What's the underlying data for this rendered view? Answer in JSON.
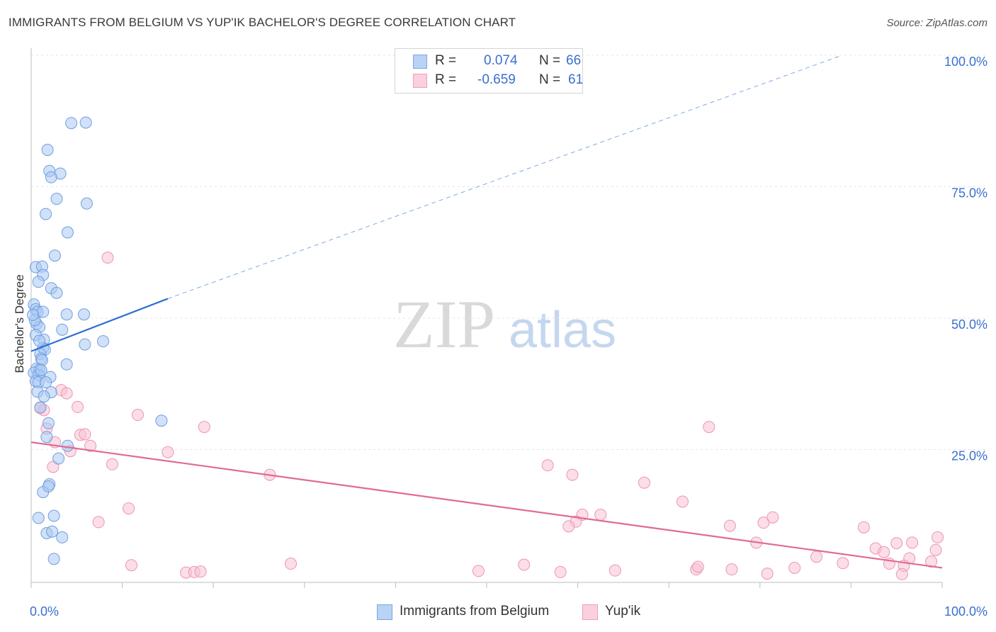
{
  "header": {
    "title": "IMMIGRANTS FROM BELGIUM VS YUP'IK BACHELOR'S DEGREE CORRELATION CHART",
    "source": "Source: ZipAtlas.com"
  },
  "watermark": {
    "zip": "ZIP",
    "atlas": "atlas"
  },
  "legend": {
    "rows": [
      {
        "r_label": "R =",
        "r_value": "0.074",
        "n_label": "N =",
        "n_value": "66"
      },
      {
        "r_label": "R =",
        "r_value": "-0.659",
        "n_label": "N =",
        "n_value": "61"
      }
    ]
  },
  "bottom_legend": {
    "series_a": "Immigrants from Belgium",
    "series_b": "Yup'ik"
  },
  "chart_data": {
    "type": "scatter",
    "title": "IMMIGRANTS FROM BELGIUM VS YUP'IK BACHELOR'S DEGREE CORRELATION CHART",
    "xlabel": "",
    "ylabel": "Bachelor's Degree",
    "xlim": [
      0,
      100
    ],
    "ylim": [
      0,
      100
    ],
    "x_tick_labels": [
      "0.0%",
      "100.0%"
    ],
    "y_tick_labels": [
      "100.0%",
      "75.0%",
      "50.0%",
      "25.0%"
    ],
    "y_ticks": [
      100,
      75,
      50,
      25
    ],
    "grid": true,
    "colors": {
      "blue_fill": "#a9c8f2",
      "blue_stroke": "#6f9fe0",
      "blue_line": "#2e6fd6",
      "pink_fill": "#f7c3d3",
      "pink_stroke": "#ec95b0",
      "pink_line": "#e06a97",
      "axis_text": "#3a6fd0"
    },
    "series": [
      {
        "name": "Immigrants from Belgium",
        "color": "#a9c8f2",
        "trend": {
          "x0": 0,
          "y0": 43.7,
          "x1": 15,
          "y1": 53.7,
          "dash_to_x": 89,
          "dash_to_y": 100
        },
        "points": [
          [
            4.4,
            87.1
          ],
          [
            6.0,
            87.2
          ],
          [
            1.8,
            82.0
          ],
          [
            2.0,
            78.0
          ],
          [
            3.2,
            77.5
          ],
          [
            2.2,
            76.8
          ],
          [
            2.8,
            72.7
          ],
          [
            6.1,
            71.8
          ],
          [
            1.6,
            69.8
          ],
          [
            4.0,
            66.3
          ],
          [
            2.6,
            61.9
          ],
          [
            0.5,
            59.7
          ],
          [
            1.2,
            59.8
          ],
          [
            1.3,
            58.2
          ],
          [
            0.8,
            56.9
          ],
          [
            2.2,
            55.7
          ],
          [
            2.8,
            54.8
          ],
          [
            0.3,
            52.6
          ],
          [
            0.5,
            51.7
          ],
          [
            0.7,
            51.2
          ],
          [
            1.3,
            51.2
          ],
          [
            3.9,
            50.7
          ],
          [
            5.8,
            50.7
          ],
          [
            0.6,
            48.9
          ],
          [
            0.9,
            48.3
          ],
          [
            3.4,
            47.8
          ],
          [
            0.5,
            46.8
          ],
          [
            1.4,
            45.9
          ],
          [
            7.9,
            45.6
          ],
          [
            5.9,
            45.0
          ],
          [
            1.3,
            44.3
          ],
          [
            1.5,
            44.0
          ],
          [
            1.0,
            43.2
          ],
          [
            1.1,
            42.3
          ],
          [
            1.2,
            42.0
          ],
          [
            3.9,
            41.2
          ],
          [
            0.6,
            40.4
          ],
          [
            0.9,
            40.2
          ],
          [
            0.3,
            39.6
          ],
          [
            0.8,
            39.2
          ],
          [
            2.1,
            38.8
          ],
          [
            0.5,
            38.0
          ],
          [
            0.8,
            37.8
          ],
          [
            1.6,
            37.8
          ],
          [
            0.7,
            36.0
          ],
          [
            2.2,
            35.9
          ],
          [
            1.4,
            35.1
          ],
          [
            1.0,
            33.0
          ],
          [
            14.3,
            30.5
          ],
          [
            1.9,
            30.0
          ],
          [
            1.7,
            27.4
          ],
          [
            4.0,
            25.7
          ],
          [
            3.0,
            23.3
          ],
          [
            2.0,
            18.4
          ],
          [
            1.3,
            16.9
          ],
          [
            0.8,
            12.0
          ],
          [
            2.5,
            12.4
          ],
          [
            1.7,
            9.1
          ],
          [
            2.3,
            9.4
          ],
          [
            3.4,
            8.3
          ],
          [
            2.5,
            4.2
          ],
          [
            1.9,
            18.0
          ],
          [
            0.4,
            49.6
          ],
          [
            1.1,
            40.1
          ],
          [
            0.2,
            50.6
          ],
          [
            0.9,
            45.7
          ]
        ]
      },
      {
        "name": "Yup'ik",
        "color": "#f7c3d3",
        "trend": {
          "x0": 0,
          "y0": 26.4,
          "x1": 100,
          "y1": 2.5
        },
        "points": [
          [
            8.4,
            61.5
          ],
          [
            3.3,
            36.3
          ],
          [
            3.9,
            35.7
          ],
          [
            5.1,
            33.1
          ],
          [
            1.0,
            32.9
          ],
          [
            1.4,
            32.5
          ],
          [
            11.7,
            31.6
          ],
          [
            19.0,
            29.3
          ],
          [
            1.7,
            29.0
          ],
          [
            5.4,
            27.8
          ],
          [
            5.9,
            27.9
          ],
          [
            2.6,
            26.4
          ],
          [
            6.5,
            25.7
          ],
          [
            4.3,
            24.7
          ],
          [
            15.0,
            24.5
          ],
          [
            8.9,
            22.2
          ],
          [
            2.4,
            21.7
          ],
          [
            26.2,
            20.2
          ],
          [
            56.7,
            22.0
          ],
          [
            59.4,
            20.2
          ],
          [
            67.3,
            18.7
          ],
          [
            74.4,
            29.3
          ],
          [
            71.5,
            15.1
          ],
          [
            7.4,
            11.2
          ],
          [
            10.7,
            13.8
          ],
          [
            60.5,
            12.6
          ],
          [
            62.5,
            12.6
          ],
          [
            59.8,
            11.3
          ],
          [
            59.0,
            10.4
          ],
          [
            76.7,
            10.5
          ],
          [
            80.4,
            11.1
          ],
          [
            81.4,
            12.1
          ],
          [
            91.4,
            10.2
          ],
          [
            79.6,
            7.3
          ],
          [
            95.0,
            7.2
          ],
          [
            99.5,
            8.3
          ],
          [
            96.7,
            7.3
          ],
          [
            92.7,
            6.2
          ],
          [
            93.6,
            5.5
          ],
          [
            96.4,
            4.3
          ],
          [
            99.3,
            5.9
          ],
          [
            86.2,
            4.6
          ],
          [
            89.1,
            3.4
          ],
          [
            95.8,
            2.9
          ],
          [
            98.8,
            3.7
          ],
          [
            94.2,
            3.3
          ],
          [
            11.0,
            3.0
          ],
          [
            17.0,
            1.6
          ],
          [
            17.9,
            1.7
          ],
          [
            18.6,
            1.8
          ],
          [
            28.5,
            3.3
          ],
          [
            49.1,
            1.9
          ],
          [
            54.1,
            3.1
          ],
          [
            58.1,
            1.7
          ],
          [
            64.1,
            2.0
          ],
          [
            73.0,
            2.2
          ],
          [
            73.2,
            2.7
          ],
          [
            76.9,
            2.2
          ],
          [
            80.8,
            1.4
          ],
          [
            83.8,
            2.5
          ],
          [
            95.6,
            1.3
          ]
        ]
      }
    ]
  }
}
